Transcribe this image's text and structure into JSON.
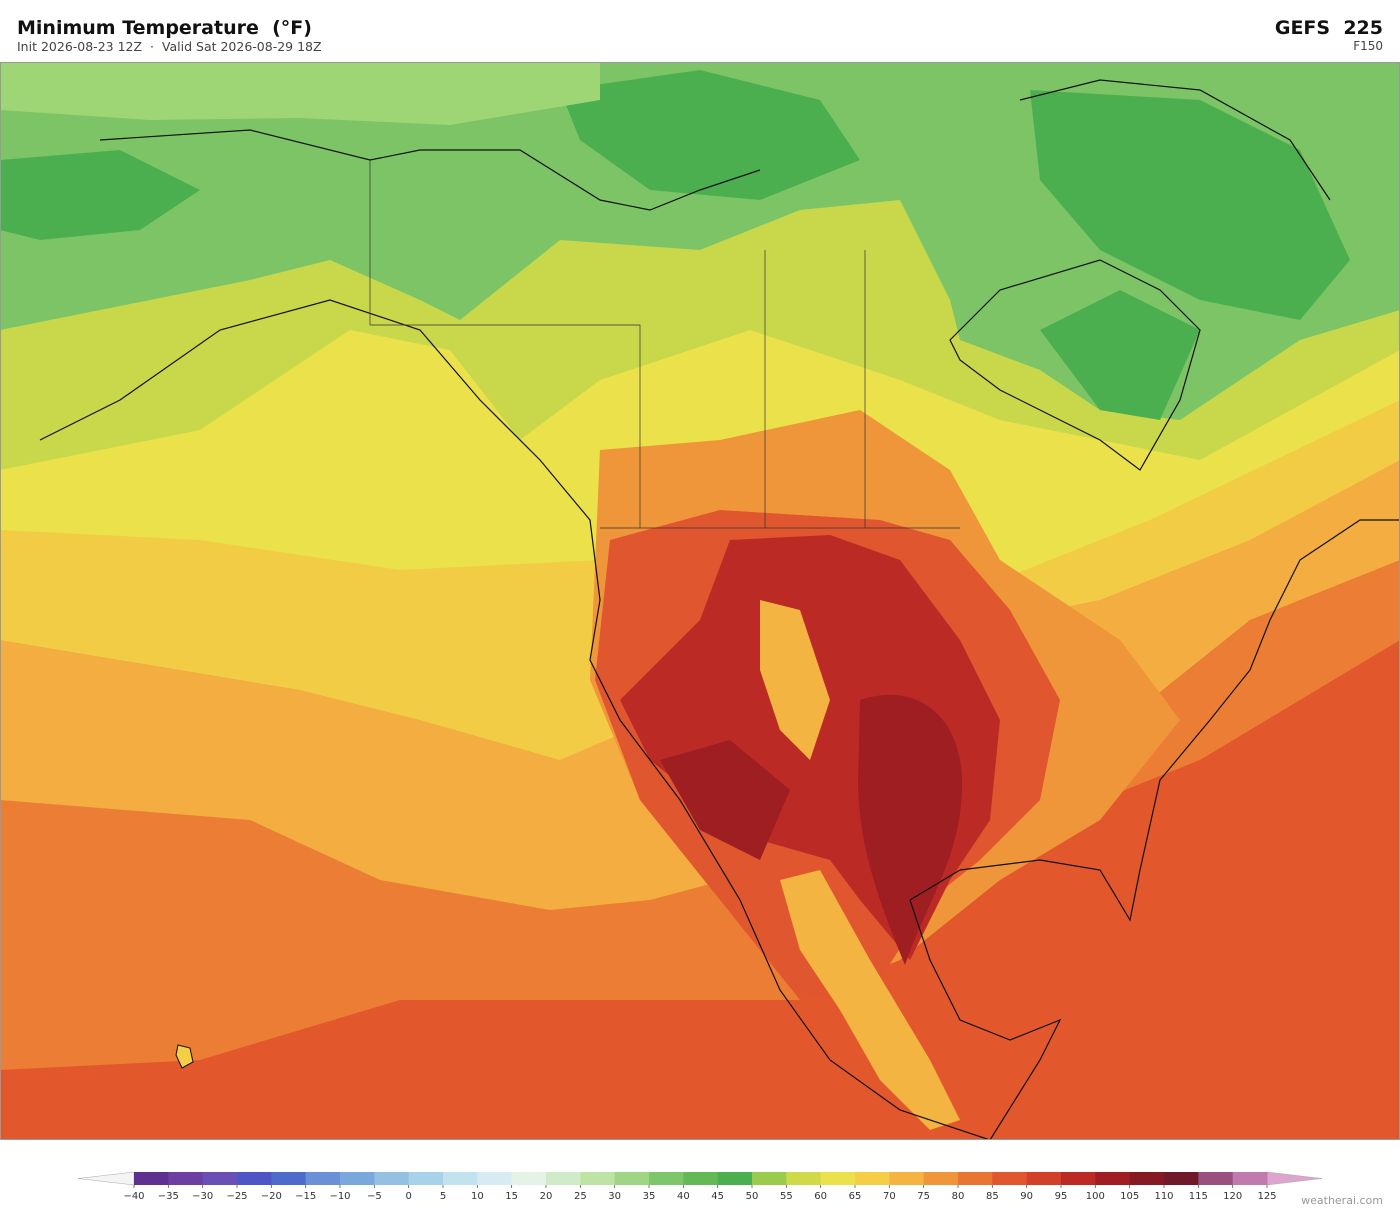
{
  "header": {
    "title": "Minimum Temperature  (°F)",
    "subtitle": "Init 2026-08-23 12Z  ·  Valid Sat 2026-08-29 18Z",
    "model": "GEFS  225",
    "forecast_hour": "F150"
  },
  "colorbar": {
    "ticks": [
      {
        "value": -40,
        "label": "−40"
      },
      {
        "value": -35,
        "label": "−35"
      },
      {
        "value": -30,
        "label": "−30"
      },
      {
        "value": -25,
        "label": "−25"
      },
      {
        "value": -20,
        "label": "−20"
      },
      {
        "value": -15,
        "label": "−15"
      },
      {
        "value": -10,
        "label": "−10"
      },
      {
        "value": -5,
        "label": "−5"
      },
      0,
      5,
      10,
      15,
      20,
      25,
      30,
      35,
      40,
      45,
      50,
      55,
      60,
      65,
      70,
      75,
      80,
      85,
      90,
      95,
      100,
      105,
      110,
      115,
      120,
      125
    ],
    "colors": [
      "#5e3190",
      "#6c3fa0",
      "#6a4fb5",
      "#4e55c4",
      "#4d6cc9",
      "#6a90d6",
      "#7aa8dc",
      "#94c0e2",
      "#a8d2ea",
      "#c3e2ef",
      "#d7ecf2",
      "#e4f3e6",
      "#d1ebc9",
      "#bde3a5",
      "#9fd585",
      "#7dc66a",
      "#64b957",
      "#4caf4f",
      "#9acb4c",
      "#cfd94a",
      "#ebe14a",
      "#f4cf46",
      "#f3b441",
      "#ef953a",
      "#e87533",
      "#e0562e",
      "#d3402a",
      "#bc2a26",
      "#a01d22",
      "#861a22",
      "#6e1a28",
      "#9a4f80",
      "#c07bae"
    ],
    "under_color": "#f4f4f4",
    "over_color": "#dca4cf"
  },
  "footer": {
    "credit": "weatherai.com"
  }
}
